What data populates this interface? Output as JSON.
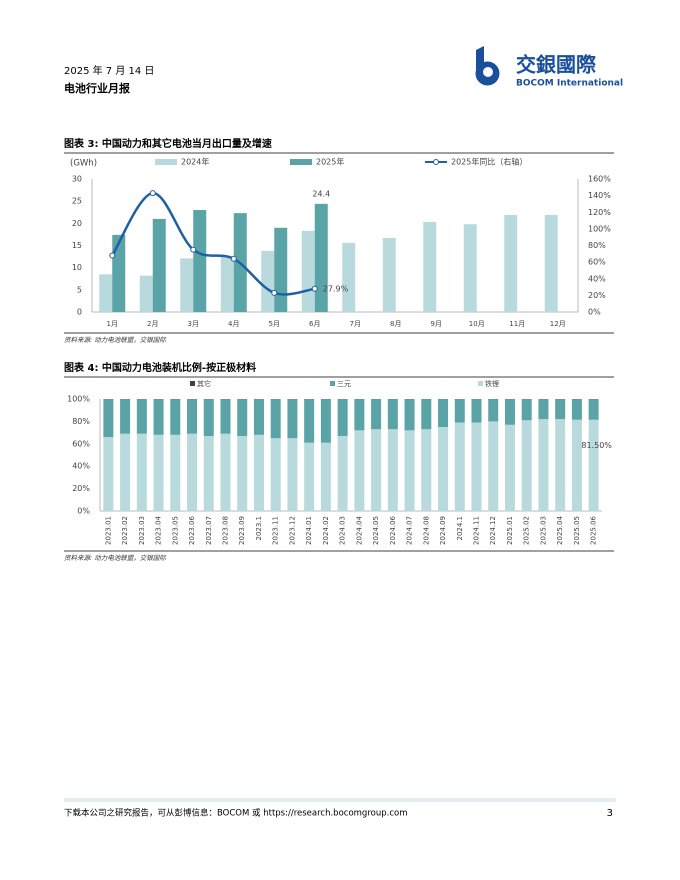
{
  "header": {
    "date": "2025 年 7 月 14 日",
    "report": "电池行业月报",
    "logo_cn": "交銀國際",
    "logo_en": "BOCOM International"
  },
  "footer": {
    "text": "下载本公司之研究报告，可从彭博信息：BOCOM 或 https://research.bocomgroup.com",
    "page": "3"
  },
  "chart_data": [
    {
      "type": "bar",
      "title": "图表 3: 中国动力和其它电池当月出口量及增速",
      "y_label": "(GWh)",
      "categories": [
        "1月",
        "2月",
        "3月",
        "4月",
        "5月",
        "6月",
        "7月",
        "8月",
        "9月",
        "10月",
        "11月",
        "12月"
      ],
      "series": [
        {
          "name": "2024年",
          "color": "#b9dadd",
          "values": [
            8.5,
            8.2,
            12.1,
            12.6,
            13.8,
            18.3,
            15.6,
            16.7,
            20.3,
            19.8,
            21.9,
            21.9
          ]
        },
        {
          "name": "2025年",
          "color": "#5aa3a7",
          "values": [
            17.4,
            21.0,
            23.0,
            22.3,
            19.0,
            24.4,
            null,
            null,
            null,
            null,
            null,
            null
          ]
        },
        {
          "name": "2025年同比（右轴）",
          "type": "line",
          "axis": "y2",
          "color": "#1f5fa3",
          "values": [
            68,
            143,
            75,
            64,
            23,
            27.9,
            null,
            null,
            null,
            null,
            null,
            null
          ],
          "value_labels": [
            null,
            null,
            null,
            null,
            null,
            "27.9%",
            null,
            null,
            null,
            null,
            null,
            null
          ]
        }
      ],
      "ylim": [
        0,
        30
      ],
      "yticks": [
        0,
        5,
        10,
        15,
        20,
        25,
        30
      ],
      "y2lim": [
        0,
        160
      ],
      "y2ticks": [
        {
          "value": 0,
          "label": "0%"
        },
        {
          "value": 20,
          "label": "20%"
        },
        {
          "value": 40,
          "label": "40%"
        },
        {
          "value": 60,
          "label": "60%"
        },
        {
          "value": 80,
          "label": "80%"
        },
        {
          "value": 100,
          "label": "100%"
        },
        {
          "value": 120,
          "label": "120%"
        },
        {
          "value": 140,
          "label": "140%"
        },
        {
          "value": 160,
          "label": "160%"
        }
      ],
      "source": "资料来源: 动力电池联盟，交银国际"
    },
    {
      "type": "stacked_bar",
      "title": "图表 4: 中国动力电池装机比例-按正极材料",
      "categories": [
        "2023.01",
        "2023.02",
        "2023.03",
        "2023.04",
        "2023.05",
        "2023.06",
        "2023.07",
        "2023.08",
        "2023.09",
        "2023.1",
        "2023.11",
        "2023.12",
        "2024.01",
        "2024.02",
        "2024.03",
        "2024.04",
        "2024.05",
        "2024.06",
        "2024.07",
        "2024.08",
        "2024.09",
        "2024.1",
        "2024.11",
        "2024.12",
        "2025.01",
        "2025.02",
        "2025.03",
        "2025.04",
        "2025.05",
        "2025.06"
      ],
      "series": [
        {
          "name": "铁锂",
          "color": "#b9dadd",
          "values": [
            66,
            69,
            69,
            68,
            68,
            69,
            67,
            69,
            67,
            68,
            65,
            65,
            61,
            61,
            67,
            72,
            73,
            73,
            72,
            73,
            75,
            79,
            79,
            80,
            77,
            81,
            82,
            82,
            81.5,
            81.5
          ],
          "value_labels": [
            null,
            null,
            null,
            null,
            null,
            null,
            null,
            null,
            null,
            null,
            null,
            null,
            null,
            null,
            null,
            null,
            null,
            null,
            null,
            null,
            null,
            null,
            null,
            null,
            null,
            null,
            null,
            null,
            null,
            "81.50%"
          ]
        },
        {
          "name": "三元",
          "color": "#5aa3a7",
          "values": [
            33.8,
            30.8,
            30.8,
            31.8,
            31.8,
            30.8,
            32.8,
            30.8,
            32.8,
            31.8,
            34.8,
            34.8,
            38.8,
            38.8,
            32.8,
            27.8,
            26.8,
            26.8,
            27.8,
            26.8,
            24.8,
            20.8,
            20.8,
            19.8,
            22.8,
            18.8,
            17.8,
            17.8,
            18.3,
            18.3
          ]
        },
        {
          "name": "其它",
          "color": "#404040",
          "values": [
            0.2,
            0.2,
            0.2,
            0.2,
            0.2,
            0.2,
            0.2,
            0.2,
            0.2,
            0.2,
            0.2,
            0.2,
            0.2,
            0.2,
            0.2,
            0.2,
            0.2,
            0.2,
            0.2,
            0.2,
            0.2,
            0.2,
            0.2,
            0.2,
            0.2,
            0.2,
            0.2,
            0.2,
            0.2,
            0.2
          ]
        }
      ],
      "ylim": [
        0,
        100
      ],
      "yticks": [
        {
          "value": 0,
          "label": "0%"
        },
        {
          "value": 20,
          "label": "20%"
        },
        {
          "value": 40,
          "label": "40%"
        },
        {
          "value": 60,
          "label": "60%"
        },
        {
          "value": 80,
          "label": "80%"
        },
        {
          "value": 100,
          "label": "100%"
        }
      ],
      "source": "资料来源: 动力电池联盟，交银国际"
    }
  ]
}
